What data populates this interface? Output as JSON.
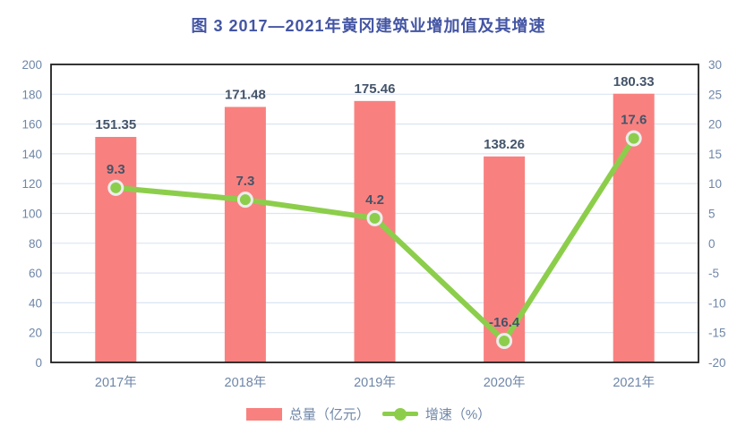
{
  "title": "图 3  2017—2021年黄冈建筑业增加值及其增速",
  "chart_data": {
    "type": "bar+line combo",
    "title": "图 3  2017—2021年黄冈建筑业增加值及其增速",
    "categories": [
      "2017年",
      "2018年",
      "2019年",
      "2020年",
      "2021年"
    ],
    "series": [
      {
        "name": "总量（亿元）",
        "type": "bar",
        "axis": "left",
        "values": [
          151.35,
          171.48,
          175.46,
          138.26,
          180.33
        ],
        "color": "#F8817F"
      },
      {
        "name": "增速（%）",
        "type": "line",
        "axis": "right",
        "values": [
          9.3,
          7.3,
          4.2,
          -16.4,
          17.6
        ],
        "color": "#8CCE4B",
        "marker_ring_color": "#EDEDED"
      }
    ],
    "left_axis": {
      "min": 0,
      "max": 200,
      "step": 20,
      "ticks": [
        0,
        20,
        40,
        60,
        80,
        100,
        120,
        140,
        160,
        180,
        200
      ]
    },
    "right_axis": {
      "min": -20,
      "max": 30,
      "step": 5,
      "ticks": [
        -20,
        -15,
        -10,
        -5,
        0,
        5,
        10,
        15,
        20,
        25,
        30
      ]
    },
    "grid": true,
    "legend_position": "bottom",
    "colors": {
      "title_text": "#4355A4",
      "data_label_text": "#44546A",
      "axis_tick_text": "#6E86A8",
      "gridline": "#DCE5F1",
      "plot_border": "#1F1F1F",
      "background": "#FFFFFF"
    }
  }
}
